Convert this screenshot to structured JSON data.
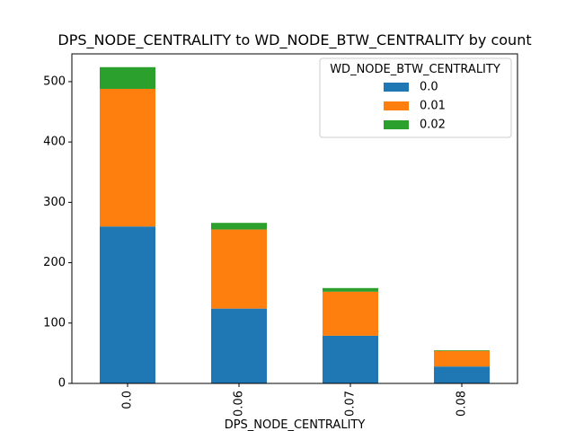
{
  "chart_data": {
    "type": "stacked_bar",
    "title": "DPS_NODE_CENTRALITY to WD_NODE_BTW_CENTRALITY by count",
    "x_label": "DPS_NODE_CENTRALITY",
    "categories": [
      "0.0",
      "0.06",
      "0.07",
      "0.08"
    ],
    "series": [
      {
        "name": "0.0",
        "color": "#1f77b4",
        "values": [
          260,
          124,
          79,
          28
        ]
      },
      {
        "name": "0.01",
        "color": "#ff7f0e",
        "values": [
          228,
          131,
          73,
          26
        ]
      },
      {
        "name": "0.02",
        "color": "#2ca02c",
        "values": [
          36,
          11,
          6,
          1
        ]
      }
    ],
    "legend_title": "WD_NODE_BTW_CENTRALITY",
    "legend_position": "upper right",
    "ylim": [
      0,
      546
    ],
    "yticks": [
      0,
      100,
      200,
      300,
      400,
      500
    ]
  }
}
